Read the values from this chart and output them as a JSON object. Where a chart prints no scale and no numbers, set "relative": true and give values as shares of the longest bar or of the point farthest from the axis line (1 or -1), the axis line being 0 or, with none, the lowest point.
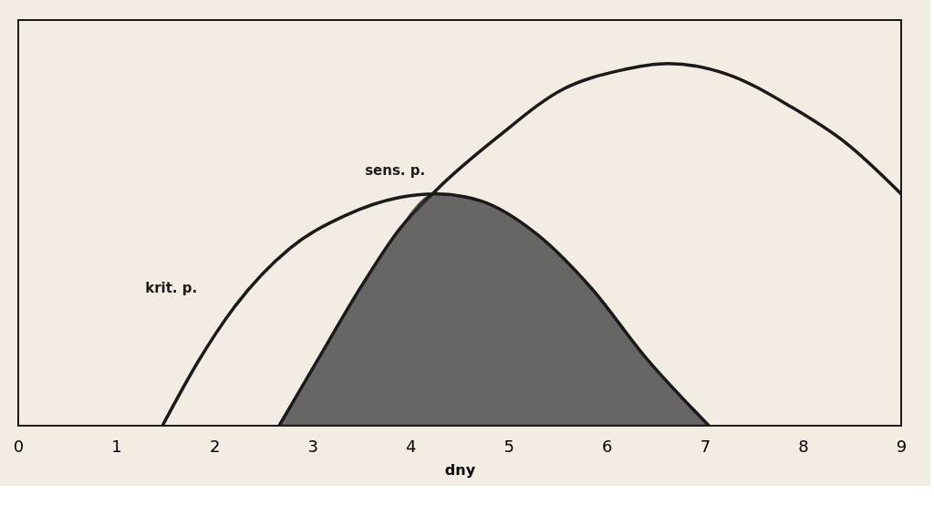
{
  "chart_data": {
    "type": "line",
    "relative": true,
    "xlabel": "dny",
    "xlim": [
      0,
      9
    ],
    "xticks": [
      0,
      1,
      2,
      3,
      4,
      5,
      6,
      7,
      8,
      9
    ],
    "grid": false,
    "series": [
      {
        "name": "sens. p.",
        "color": "#1a1a1a",
        "x": [
          2.66,
          3.05,
          3.51,
          3.88,
          4.26,
          4.9,
          5.56,
          6.12,
          6.63,
          7.23,
          7.88,
          8.44,
          9.0
        ],
        "values": [
          0,
          0.18,
          0.39,
          0.54,
          0.65,
          0.8,
          0.93,
          0.98,
          1.0,
          0.97,
          0.88,
          0.78,
          0.64
        ]
      },
      {
        "name": "krit. p.",
        "color": "#1a1a1a",
        "x": [
          1.47,
          1.84,
          2.21,
          2.77,
          3.33,
          3.88,
          4.26,
          4.72,
          5.28,
          5.84,
          6.39,
          7.04
        ],
        "values": [
          0,
          0.18,
          0.33,
          0.49,
          0.58,
          0.63,
          0.64,
          0.62,
          0.53,
          0.38,
          0.19,
          0
        ]
      },
      {
        "type": "area",
        "color": "#3a3a3a",
        "x": [
          2.66,
          3.05,
          3.51,
          3.88,
          4.26,
          4.72,
          5.28,
          5.84,
          6.39,
          7.04
        ],
        "values": [
          0,
          0.18,
          0.39,
          0.54,
          0.64,
          0.62,
          0.53,
          0.38,
          0.19,
          0
        ]
      }
    ]
  }
}
